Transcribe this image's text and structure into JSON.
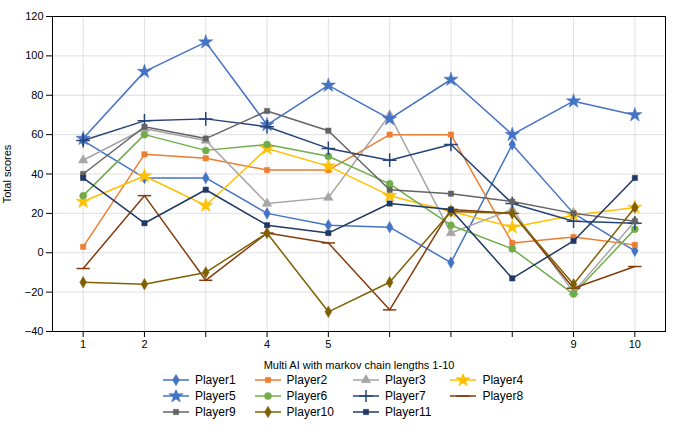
{
  "chart_data": {
    "type": "line",
    "xlabel": "Multi AI with markov chain lengths 1-10",
    "ylabel": "Total scores",
    "x": [
      1,
      2,
      3,
      4,
      5,
      6,
      7,
      8,
      9,
      10
    ],
    "xlim": [
      0.5,
      10.5
    ],
    "ylim": [
      -40,
      120
    ],
    "xticks": [
      1,
      2,
      {
        "value": 3,
        "label": null
      },
      4,
      5,
      {
        "value": 6,
        "label": null
      },
      {
        "value": 7,
        "label": null
      },
      {
        "value": 8,
        "label": null
      },
      9,
      10
    ],
    "yticks": [
      -40,
      -20,
      0,
      20,
      40,
      60,
      80,
      100,
      120
    ],
    "grid": true,
    "legend": "bottom",
    "series": [
      {
        "name": "Player1",
        "color": "#4472C4",
        "marker": "diamond",
        "values": [
          57,
          38,
          38,
          20,
          14,
          13,
          -5,
          55,
          20,
          1
        ]
      },
      {
        "name": "Player2",
        "color": "#ED7D31",
        "marker": "square",
        "values": [
          3,
          50,
          48,
          42,
          42,
          60,
          60,
          5,
          8,
          4
        ]
      },
      {
        "name": "Player3",
        "color": "#A5A5A5",
        "marker": "triangle",
        "values": [
          47,
          63,
          57,
          25,
          28,
          70,
          10,
          22,
          -20,
          16
        ]
      },
      {
        "name": "Player4",
        "color": "#FFC000",
        "marker": "star",
        "values": [
          26,
          39,
          24,
          53,
          44,
          29,
          21,
          13,
          19,
          23
        ]
      },
      {
        "name": "Player5",
        "color": "#4472C4",
        "marker": "star",
        "values": [
          58,
          92,
          107,
          65,
          85,
          68,
          88,
          60,
          77,
          70
        ]
      },
      {
        "name": "Player6",
        "color": "#70AD47",
        "marker": "circle",
        "values": [
          29,
          60,
          52,
          55,
          49,
          35,
          14,
          2,
          -21,
          12
        ]
      },
      {
        "name": "Player7",
        "color": "#264478",
        "marker": "plus",
        "values": [
          57,
          67,
          68,
          64,
          53,
          47,
          55,
          25,
          16,
          15
        ]
      },
      {
        "name": "Player8",
        "color": "#843C0C",
        "marker": "hline",
        "values": [
          -8,
          29,
          -14,
          10,
          5,
          -29,
          22,
          20,
          -18,
          -7
        ]
      },
      {
        "name": "Player9",
        "color": "#636363",
        "marker": "square",
        "values": [
          40,
          64,
          58,
          72,
          62,
          32,
          30,
          26,
          20,
          16
        ]
      },
      {
        "name": "Player10",
        "color": "#7F6000",
        "marker": "diamond",
        "values": [
          -15,
          -16,
          -10,
          10,
          -30,
          -15,
          21,
          20,
          -16,
          23
        ]
      },
      {
        "name": "Player11",
        "color": "#1F3864",
        "marker": "square",
        "values": [
          38,
          15,
          32,
          14,
          10,
          25,
          22,
          -13,
          6,
          38
        ]
      }
    ]
  }
}
